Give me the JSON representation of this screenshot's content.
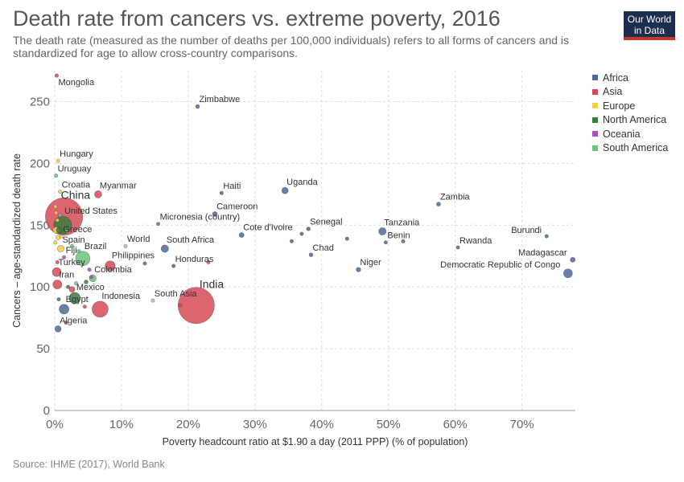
{
  "header": {
    "title": "Death rate from cancers vs. extreme poverty, 2016",
    "subtitle": "The death rate (measured as the number of deaths per 100,000 individuals) refers to all forms of cancers and is standardized for age to allow cross-country comparisons.",
    "logo_line1": "Our World",
    "logo_line2": "in Data"
  },
  "footer": {
    "source": "Source: IHME (2017), World Bank"
  },
  "colors": {
    "Africa": "#4c6a9c",
    "Asia": "#d64b57",
    "Europe": "#f2d14c",
    "North America": "#3b7a3d",
    "Oceania": "#a652ba",
    "South America": "#6ec47f"
  },
  "legend": [
    {
      "name": "Africa",
      "color": "#4c6a9c"
    },
    {
      "name": "Asia",
      "color": "#d64b57"
    },
    {
      "name": "Europe",
      "color": "#f2d14c"
    },
    {
      "name": "North America",
      "color": "#3b7a3d"
    },
    {
      "name": "Oceania",
      "color": "#a652ba"
    },
    {
      "name": "South America",
      "color": "#6ec47f"
    }
  ],
  "chart_data": {
    "type": "scatter",
    "xlabel": "Poverty headcount ratio at $1.90 a day (2011 PPP) (% of population)",
    "ylabel": "Cancers – age-standardized death rate",
    "xlim": [
      0,
      78
    ],
    "ylim": [
      0,
      275
    ],
    "xticks": [
      0,
      10,
      20,
      30,
      40,
      50,
      60,
      70
    ],
    "xtick_labels": [
      "0%",
      "10%",
      "20%",
      "30%",
      "40%",
      "50%",
      "60%",
      "70%"
    ],
    "yticks": [
      0,
      50,
      100,
      150,
      200,
      250
    ],
    "ytick_labels": [
      "0",
      "50",
      "100",
      "150",
      "200",
      "250"
    ],
    "grid": true,
    "legend_position": "right",
    "points": [
      {
        "label": "Mongolia",
        "continent": "Asia",
        "x": 0.3,
        "y": 271,
        "pop": 3
      },
      {
        "label": "Zimbabwe",
        "continent": "Africa",
        "x": 21.4,
        "y": 246,
        "pop": 16
      },
      {
        "label": "Hungary",
        "continent": "Europe",
        "x": 0.5,
        "y": 202,
        "pop": 10
      },
      {
        "label": "Uruguay",
        "continent": "South America",
        "x": 0.2,
        "y": 190,
        "pop": 3
      },
      {
        "label": "Croatia",
        "continent": "Europe",
        "x": 0.8,
        "y": 177,
        "pop": 4
      },
      {
        "label": "Myanmar",
        "continent": "Asia",
        "x": 6.5,
        "y": 175,
        "pop": 53
      },
      {
        "label": "Haiti",
        "continent": "North America",
        "x": 25.0,
        "y": 176,
        "pop": 11
      },
      {
        "label": "Uganda",
        "continent": "Africa",
        "x": 34.5,
        "y": 178,
        "pop": 42
      },
      {
        "label": "Zambia",
        "continent": "Africa",
        "x": 57.5,
        "y": 167,
        "pop": 17
      },
      {
        "label": "China",
        "continent": "Asia",
        "x": 1.4,
        "y": 157,
        "pop": 1400
      },
      {
        "label": "Cameroon",
        "continent": "Africa",
        "x": 24.0,
        "y": 159,
        "pop": 24
      },
      {
        "label": "United States",
        "continent": "North America",
        "x": 1.2,
        "y": 150,
        "pop": 323
      },
      {
        "label": "Micronesia (country)",
        "continent": "Oceania",
        "x": 15.5,
        "y": 151,
        "pop": 1
      },
      {
        "label": "Senegal",
        "continent": "Africa",
        "x": 38.0,
        "y": 147,
        "pop": 15
      },
      {
        "label": "Tanzania",
        "continent": "Africa",
        "x": 49.1,
        "y": 145,
        "pop": 56
      },
      {
        "label": "Cote d'Ivoire",
        "continent": "Africa",
        "x": 28.0,
        "y": 142,
        "pop": 24
      },
      {
        "label": "Burundi",
        "continent": "Africa",
        "x": 73.7,
        "y": 141,
        "pop": 11
      },
      {
        "label": "Greece",
        "continent": "Europe",
        "x": 1.0,
        "y": 141,
        "pop": 11
      },
      {
        "label": "Benin",
        "continent": "Africa",
        "x": 49.6,
        "y": 136,
        "pop": 11
      },
      {
        "label": "Rwanda",
        "continent": "Africa",
        "x": 60.4,
        "y": 132,
        "pop": 12
      },
      {
        "label": "World",
        "continent": "",
        "x": 10.6,
        "y": 133,
        "pop": 3
      },
      {
        "label": "South Africa",
        "continent": "Africa",
        "x": 16.5,
        "y": 131,
        "pop": 56
      },
      {
        "label": "Spain",
        "continent": "Europe",
        "x": 0.9,
        "y": 131,
        "pop": 47
      },
      {
        "label": "Brazil",
        "continent": "South America",
        "x": 4.2,
        "y": 123,
        "pop": 208
      },
      {
        "label": "Chad",
        "continent": "Africa",
        "x": 38.4,
        "y": 126,
        "pop": 15
      },
      {
        "label": "Madagascar",
        "continent": "Africa",
        "x": 77.6,
        "y": 122,
        "pop": 25
      },
      {
        "label": "Fiji",
        "continent": "Oceania",
        "x": 1.4,
        "y": 124,
        "pop": 1
      },
      {
        "label": "Philippines",
        "continent": "Asia",
        "x": 8.3,
        "y": 117,
        "pop": 104
      },
      {
        "label": "Honduras",
        "continent": "North America",
        "x": 17.8,
        "y": 117,
        "pop": 9
      },
      {
        "label": "Niger",
        "continent": "Africa",
        "x": 45.5,
        "y": 114,
        "pop": 21
      },
      {
        "label": "Turkey",
        "continent": "Asia",
        "x": 0.3,
        "y": 112,
        "pop": 80
      },
      {
        "label": "Democratic Republic of Congo",
        "continent": "Africa",
        "x": 76.9,
        "y": 111,
        "pop": 79
      },
      {
        "label": "Colombia",
        "continent": "South America",
        "x": 5.7,
        "y": 107,
        "pop": 49
      },
      {
        "label": "Iran",
        "continent": "Asia",
        "x": 0.4,
        "y": 102,
        "pop": 80
      },
      {
        "label": "Mexico",
        "continent": "North America",
        "x": 3.0,
        "y": 91,
        "pop": 127
      },
      {
        "label": "South Asia",
        "continent": "",
        "x": 14.7,
        "y": 89,
        "pop": 3
      },
      {
        "label": "India",
        "continent": "Asia",
        "x": 21.2,
        "y": 85,
        "pop": 1324
      },
      {
        "label": "Indonesia",
        "continent": "Asia",
        "x": 6.8,
        "y": 82,
        "pop": 261
      },
      {
        "label": "Egypt",
        "continent": "Africa",
        "x": 1.4,
        "y": 82,
        "pop": 96
      },
      {
        "label": "Algeria",
        "continent": "Africa",
        "x": 0.5,
        "y": 66,
        "pop": 40
      },
      {
        "label": "",
        "continent": "Europe",
        "x": 0.1,
        "y": 165,
        "pop": 4
      },
      {
        "label": "",
        "continent": "Europe",
        "x": 0.2,
        "y": 160,
        "pop": 4
      },
      {
        "label": "",
        "continent": "Europe",
        "x": 0.4,
        "y": 154,
        "pop": 10
      },
      {
        "label": "",
        "continent": "Europe",
        "x": 0.2,
        "y": 146,
        "pop": 40
      },
      {
        "label": "",
        "continent": "Europe",
        "x": 0.5,
        "y": 140,
        "pop": 20
      },
      {
        "label": "",
        "continent": "Europe",
        "x": 0.1,
        "y": 136,
        "pop": 9
      },
      {
        "label": "",
        "continent": "South America",
        "x": 0.8,
        "y": 158,
        "pop": 4
      },
      {
        "label": "",
        "continent": "South America",
        "x": 1.8,
        "y": 145,
        "pop": 11
      },
      {
        "label": "",
        "continent": "South America",
        "x": 2.6,
        "y": 133,
        "pop": 4
      },
      {
        "label": "",
        "continent": "South America",
        "x": 3.6,
        "y": 129,
        "pop": 7
      },
      {
        "label": "",
        "continent": "South America",
        "x": 3.2,
        "y": 103,
        "pop": 7
      },
      {
        "label": "",
        "continent": "North America",
        "x": 0.7,
        "y": 146,
        "pop": 36
      },
      {
        "label": "",
        "continent": "North America",
        "x": 4.7,
        "y": 104,
        "pop": 16
      },
      {
        "label": "",
        "continent": "North America",
        "x": 2.0,
        "y": 100,
        "pop": 4
      },
      {
        "label": "",
        "continent": "Asia",
        "x": 0.4,
        "y": 120,
        "pop": 10
      },
      {
        "label": "",
        "continent": "Asia",
        "x": 2.6,
        "y": 98,
        "pop": 32
      },
      {
        "label": "",
        "continent": "Asia",
        "x": 4.5,
        "y": 84,
        "pop": 4
      },
      {
        "label": "",
        "continent": "Asia",
        "x": 1.7,
        "y": 71,
        "pop": 6
      },
      {
        "label": "",
        "continent": "Asia",
        "x": 18.8,
        "y": 85,
        "pop": 1
      },
      {
        "label": "",
        "continent": "Asia",
        "x": 23.0,
        "y": 120,
        "pop": 3
      },
      {
        "label": "",
        "continent": "Africa",
        "x": 13.5,
        "y": 119,
        "pop": 8
      },
      {
        "label": "",
        "continent": "Africa",
        "x": 35.5,
        "y": 137,
        "pop": 2
      },
      {
        "label": "",
        "continent": "Africa",
        "x": 37.0,
        "y": 143,
        "pop": 2
      },
      {
        "label": "",
        "continent": "Africa",
        "x": 43.8,
        "y": 139,
        "pop": 6
      },
      {
        "label": "",
        "continent": "Africa",
        "x": 52.2,
        "y": 137,
        "pop": 2
      },
      {
        "label": "",
        "continent": "Africa",
        "x": 0.6,
        "y": 90,
        "pop": 2
      },
      {
        "label": "",
        "continent": "Oceania",
        "x": 5.5,
        "y": 108,
        "pop": 1
      },
      {
        "label": "",
        "continent": "Oceania",
        "x": 5.2,
        "y": 114,
        "pop": 1
      }
    ]
  }
}
